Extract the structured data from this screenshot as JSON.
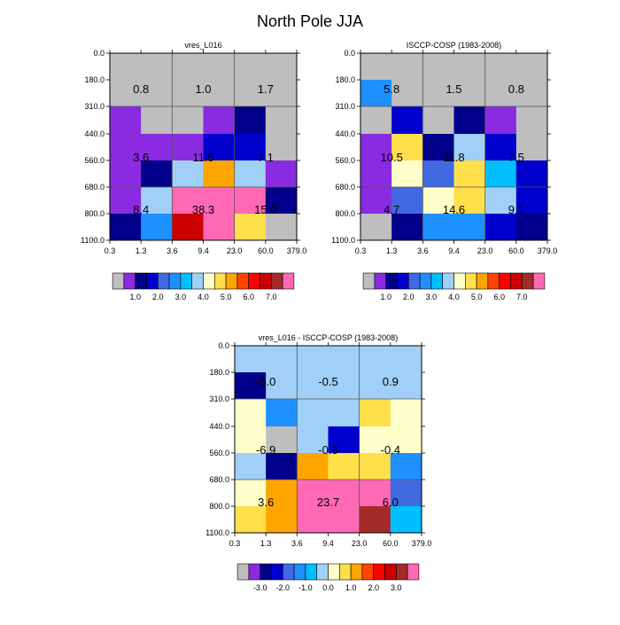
{
  "title": "North Pole JJA",
  "x_ticks": [
    "0.3",
    "1.3",
    "3.6",
    "9.4",
    "23.0",
    "60.0",
    "379.0"
  ],
  "y_ticks": [
    "0.0",
    "180.0",
    "310.0",
    "440.0",
    "560.0",
    "680.0",
    "800.0",
    "1100.0"
  ],
  "colorbars": {
    "abs": {
      "colors": [
        "#BEBEBE",
        "#8A2BE2",
        "#00008B",
        "#0000CD",
        "#4169E1",
        "#1E90FF",
        "#00BFFF",
        "#A0D0F8",
        "#FFFFCC",
        "#FFE04B",
        "#FFA500",
        "#FF4500",
        "#FF0000",
        "#CC0000",
        "#A52A2A",
        "#FF69B4"
      ],
      "labels": [
        "1.0",
        "2.0",
        "3.0",
        "4.0",
        "5.0",
        "6.0",
        "7.0"
      ],
      "label_after_box": [
        2,
        4,
        6,
        8,
        10,
        12,
        14
      ]
    },
    "diff": {
      "colors": [
        "#BEBEBE",
        "#8A2BE2",
        "#00008B",
        "#0000CD",
        "#4169E1",
        "#1E90FF",
        "#00BFFF",
        "#A0D0F8",
        "#FFFFCC",
        "#FFE04B",
        "#FFA500",
        "#FF4500",
        "#FF0000",
        "#CC0000",
        "#A52A2A",
        "#FF69B4"
      ],
      "labels": [
        "-3.0",
        "-2.0",
        "-1.0",
        "0.0",
        "1.0",
        "2.0",
        "3.0"
      ],
      "label_after_box": [
        2,
        4,
        6,
        8,
        10,
        12,
        14
      ]
    }
  },
  "chart_data": [
    {
      "type": "heatmap",
      "title": "vres_L016",
      "colorbar": "abs",
      "cells": [
        [
          "gray",
          "gray",
          "gray",
          "gray",
          "gray",
          "gray"
        ],
        [
          "gray",
          "gray",
          "gray",
          "gray",
          "gray",
          "gray"
        ],
        [
          "purple",
          "gray",
          "gray",
          "purple",
          "darkblue",
          "gray"
        ],
        [
          "purple",
          "purple",
          "purple",
          "mediumblue",
          "mediumblue",
          "gray"
        ],
        [
          "purple",
          "darkblue",
          "lightblue",
          "orange",
          "lightblue",
          "purple"
        ],
        [
          "purple",
          "lightblue",
          "pink",
          "pink",
          "pink",
          "darkblue"
        ],
        [
          "darkblue",
          "dodgerblue",
          "red",
          "pink",
          "yellow",
          "gray"
        ]
      ],
      "summary": [
        [
          "0.8",
          "1.0",
          "1.7"
        ],
        [
          "3.6",
          "11.5",
          "7.1"
        ],
        [
          "8.4",
          "38.3",
          "15.0"
        ]
      ]
    },
    {
      "type": "heatmap",
      "title": "ISCCP-COSP (1983-2008)",
      "colorbar": "abs",
      "cells": [
        [
          "gray",
          "gray",
          "gray",
          "gray",
          "gray",
          "gray"
        ],
        [
          "dodgerblue",
          "gray",
          "gray",
          "gray",
          "gray",
          "gray"
        ],
        [
          "gray",
          "mediumblue",
          "gray",
          "darkblue",
          "purple",
          "gray"
        ],
        [
          "purple",
          "yellow",
          "darkblue",
          "lightblue",
          "mediumblue",
          "gray"
        ],
        [
          "purple",
          "cream",
          "royalblue",
          "yellow",
          "deepskyblue",
          "mediumblue"
        ],
        [
          "purple",
          "royalblue",
          "cream",
          "yellow",
          "lightblue",
          "mediumblue"
        ],
        [
          "gray",
          "darkblue",
          "dodgerblue",
          "dodgerblue",
          "mediumblue",
          "darkblue"
        ]
      ],
      "summary": [
        [
          "5.8",
          "1.5",
          "0.8"
        ],
        [
          "10.5",
          "11.8",
          "7.5"
        ],
        [
          "4.7",
          "14.6",
          "9.1"
        ]
      ]
    },
    {
      "type": "heatmap",
      "title": "vres_L016 - ISCCP-COSP (1983-2008)",
      "colorbar": "diff",
      "cells": [
        [
          "lightblue",
          "lightblue",
          "lightblue",
          "lightblue",
          "lightblue",
          "lightblue"
        ],
        [
          "darkblue",
          "lightblue",
          "lightblue",
          "lightblue",
          "lightblue",
          "lightblue"
        ],
        [
          "cream",
          "dodgerblue",
          "lightblue",
          "lightblue",
          "yellow",
          "cream"
        ],
        [
          "cream",
          "gray",
          "lightblue",
          "mediumblue",
          "cream",
          "cream"
        ],
        [
          "lightblue",
          "darkblue",
          "orange",
          "yellow",
          "yellow",
          "dodgerblue"
        ],
        [
          "cream",
          "orange",
          "pink",
          "pink",
          "pink",
          "royalblue"
        ],
        [
          "yellow",
          "orange",
          "pink",
          "pink",
          "brown",
          "deepskyblue"
        ]
      ],
      "summary": [
        [
          "-5.0",
          "-0.5",
          "0.9"
        ],
        [
          "-6.9",
          "-0.3",
          "-0.4"
        ],
        [
          "3.6",
          "23.7",
          "6.0"
        ]
      ]
    }
  ],
  "palette": {
    "gray": "#BEBEBE",
    "purple": "#8A2BE2",
    "darkblue": "#00008B",
    "mediumblue": "#0000CD",
    "royalblue": "#4169E1",
    "dodgerblue": "#1E90FF",
    "deepskyblue": "#00BFFF",
    "lightblue": "#A0D0F8",
    "cream": "#FFFFCC",
    "yellow": "#FFE04B",
    "orange": "#FFA500",
    "red": "#CC0000",
    "brown": "#A52A2A",
    "pink": "#FF69B4"
  }
}
